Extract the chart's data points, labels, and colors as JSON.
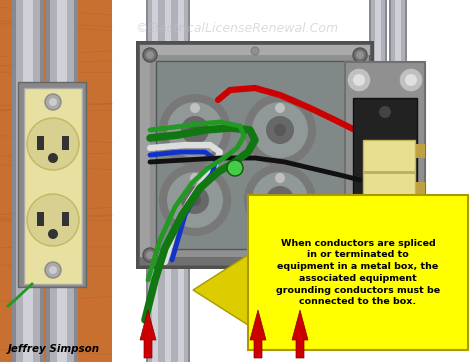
{
  "title": "©ElectricalLicenseRenewal.Com",
  "title_color": "#c0c0c0",
  "title_fontsize": 9,
  "annotation_text": "When conductors are spliced\nin or terminated to\nequipment in a metal box, the\nassociated equipment\ngrounding conductors must be\nconnected to the box.",
  "annotation_box_color": "#ffff00",
  "annotation_text_color": "#000000",
  "annotation_fontsize": 6.8,
  "author_text": "Jeffrey Simpson",
  "author_color": "#000000",
  "author_fontsize": 7.5,
  "bg_color": "#ffffff",
  "wood_color": "#c87030",
  "wood_dark": "#a05020",
  "outlet_body_color": "#e8e0a0",
  "outlet_face_color": "#d8d090",
  "outlet_slot_color": "#333333",
  "switch_mount_color": "#a0a0a0",
  "switch_body_color": "#222222",
  "switch_toggle_color": "#e8e090",
  "conduit_color": "#b0b0b8",
  "conduit_dark": "#888890",
  "conduit_light": "#d0d0d8",
  "box_outer_color": "#909090",
  "box_inner_color": "#808888",
  "box_rim_color": "#787878",
  "box_edge_color": "#505050",
  "knockout_ring_color": "#686868",
  "knockout_inner_color": "#707878",
  "screw_color": "#808080",
  "wire_red": "#cc0000",
  "wire_black": "#111111",
  "wire_white": "#dddddd",
  "wire_green": "#117711",
  "wire_green2": "#229922",
  "wire_blue": "#1133cc",
  "arrow_red": "#cc0000",
  "arrow_yellow": "#ddcc00",
  "green_dot_color": "#44cc44"
}
